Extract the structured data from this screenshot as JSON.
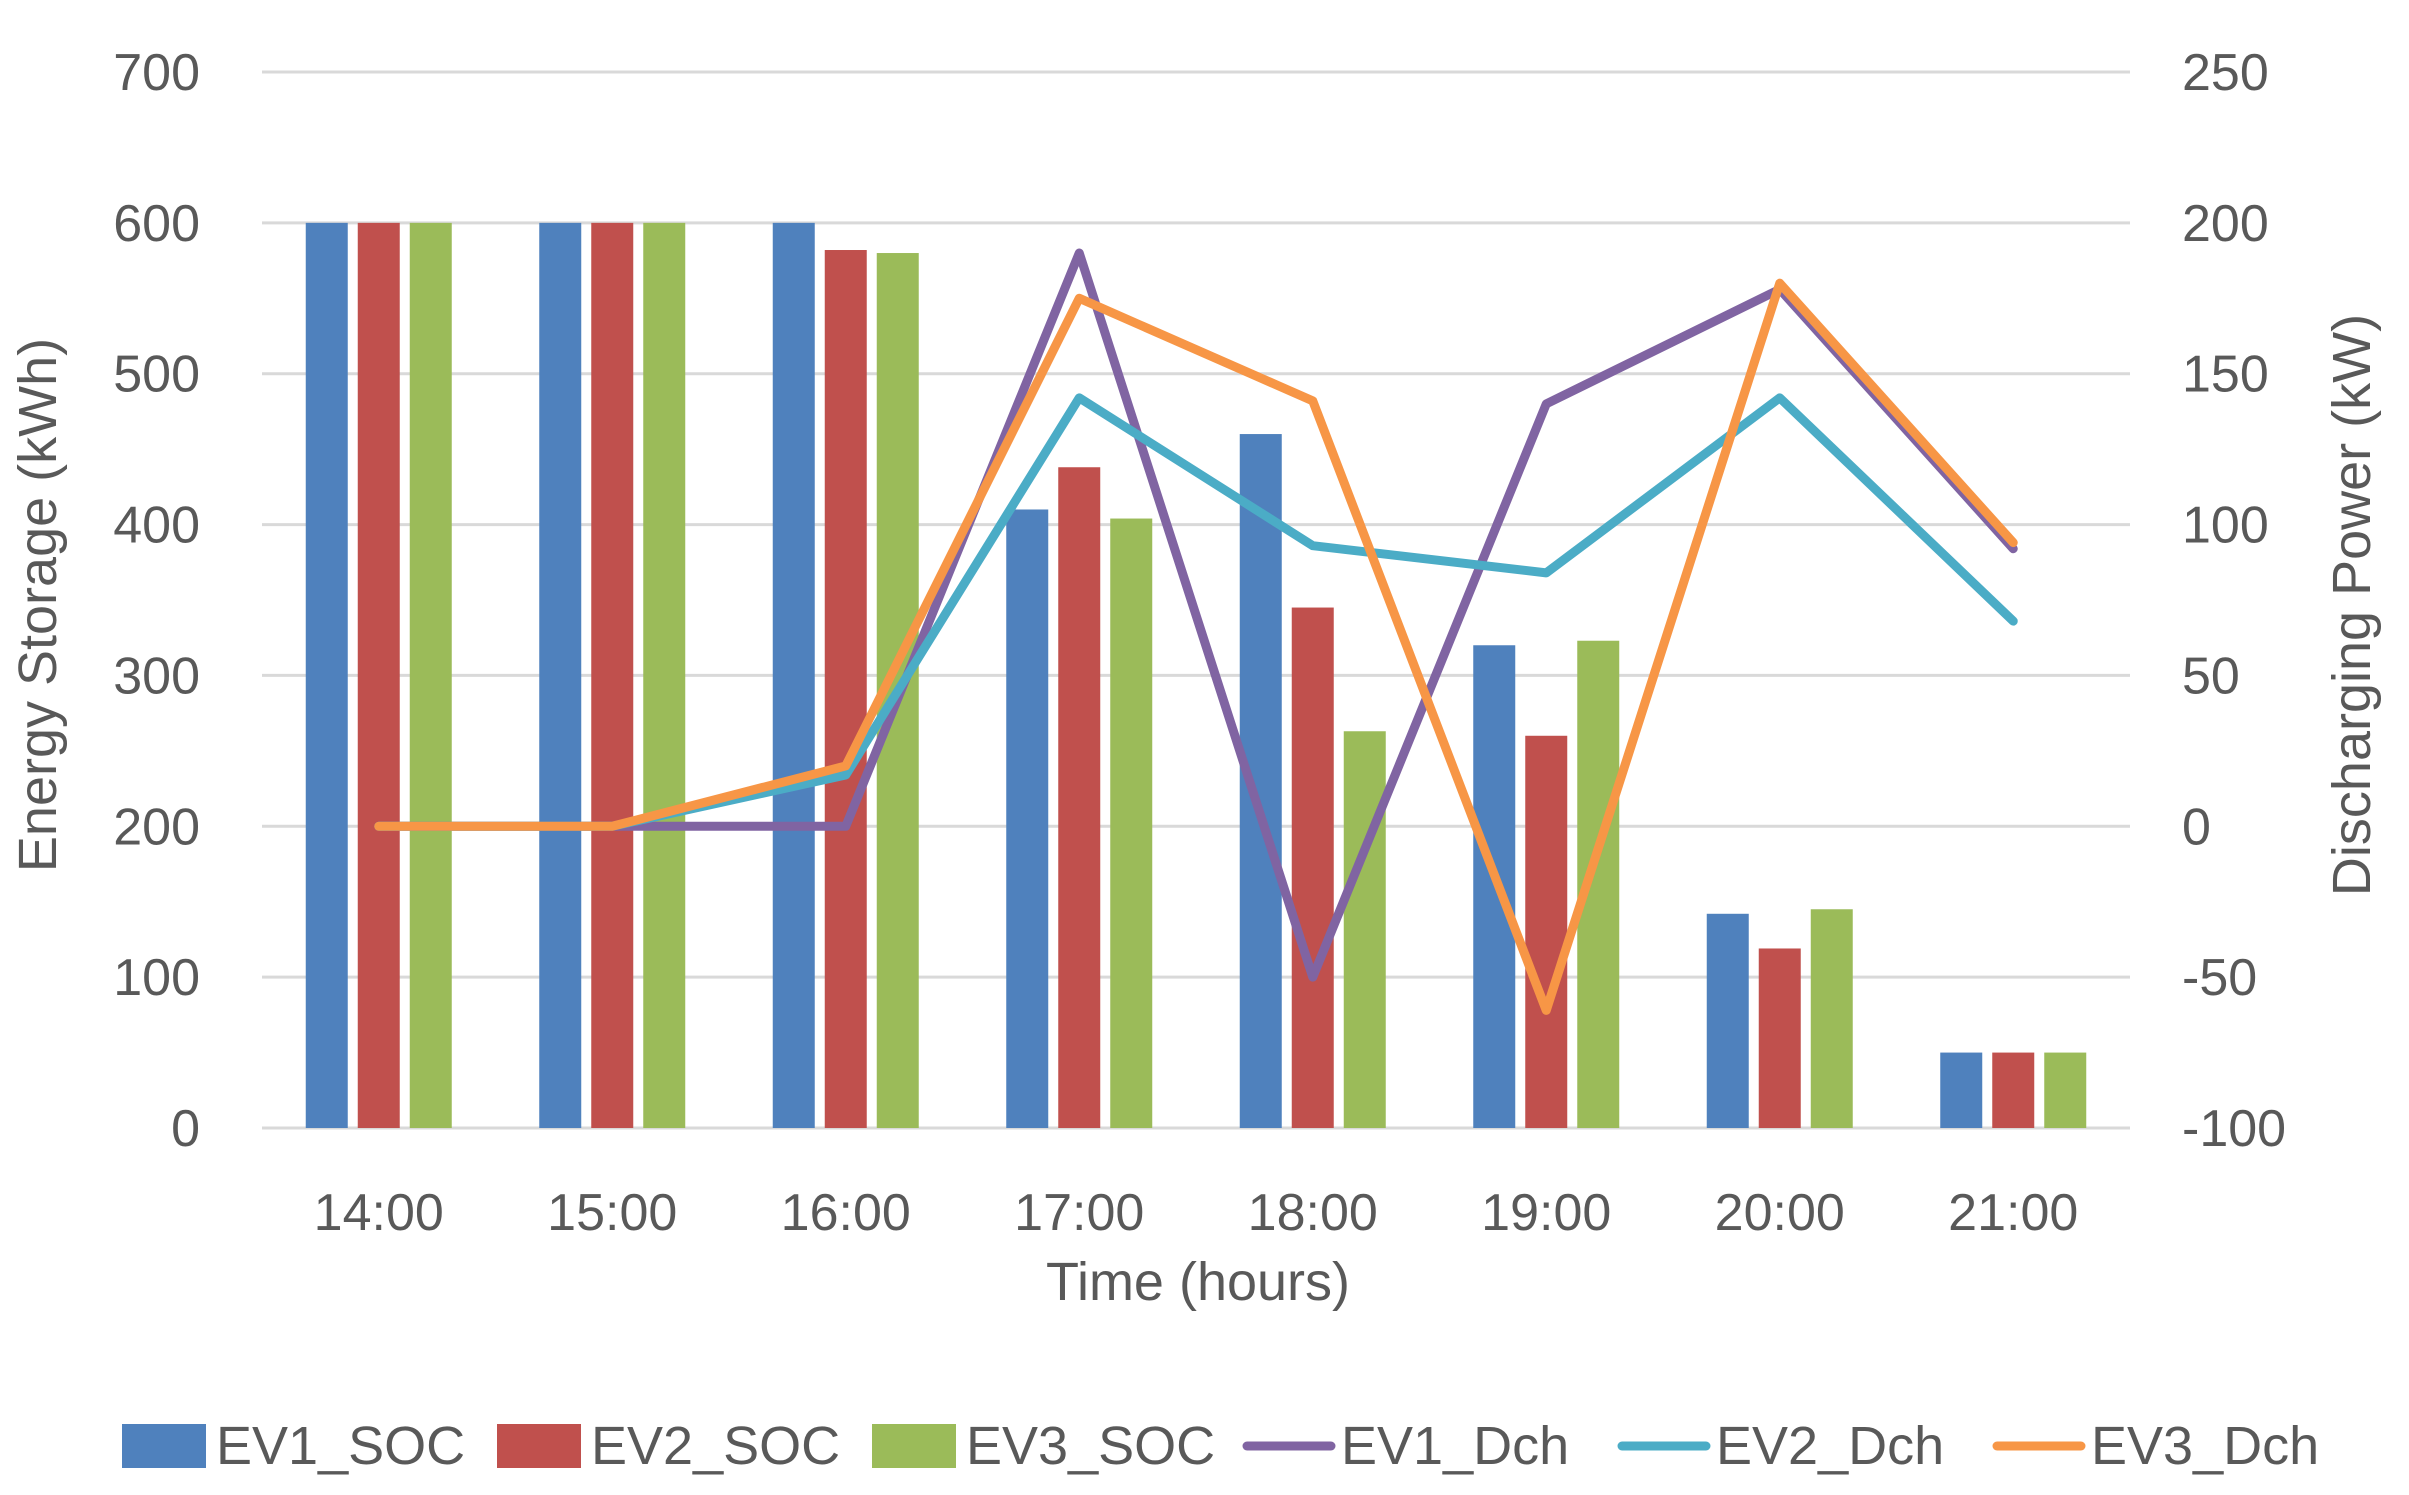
{
  "chart_data": {
    "type": "bar",
    "title": "",
    "xlabel": "Time (hours)",
    "ylabel": "Energy Storage (kWh)",
    "y2label": "Discharging Power (kW)",
    "categories": [
      "14:00",
      "15:00",
      "16:00",
      "17:00",
      "18:00",
      "19:00",
      "20:00",
      "21:00"
    ],
    "ylim": [
      0,
      700
    ],
    "yticks": [
      0,
      100,
      200,
      300,
      400,
      500,
      600,
      700
    ],
    "y2lim": [
      -100,
      250
    ],
    "y2ticks": [
      -100,
      -50,
      0,
      50,
      100,
      150,
      200,
      250
    ],
    "grid": true,
    "legend_position": "bottom",
    "bar_series": [
      {
        "name": "EV1_SOC",
        "color": "#4F81BD",
        "values": [
          600,
          600,
          600,
          410,
          460,
          320,
          142,
          50
        ]
      },
      {
        "name": "EV2_SOC",
        "color": "#C0504D",
        "values": [
          600,
          600,
          582,
          438,
          345,
          260,
          119,
          50
        ]
      },
      {
        "name": "EV3_SOC",
        "color": "#9BBB59",
        "values": [
          600,
          600,
          580,
          404,
          263,
          323,
          145,
          50
        ]
      }
    ],
    "line_series": [
      {
        "name": "EV1_Dch",
        "color": "#8064A2",
        "axis": "right",
        "values": [
          0,
          0,
          0,
          190,
          -50,
          140,
          178,
          92
        ]
      },
      {
        "name": "EV2_Dch",
        "color": "#4BACC6",
        "axis": "right",
        "values": [
          0,
          0,
          17,
          142,
          93,
          84,
          142,
          68
        ]
      },
      {
        "name": "EV3_Dch",
        "color": "#F79646",
        "axis": "right",
        "values": [
          0,
          0,
          20,
          175,
          141,
          -61,
          180,
          94
        ]
      }
    ]
  }
}
